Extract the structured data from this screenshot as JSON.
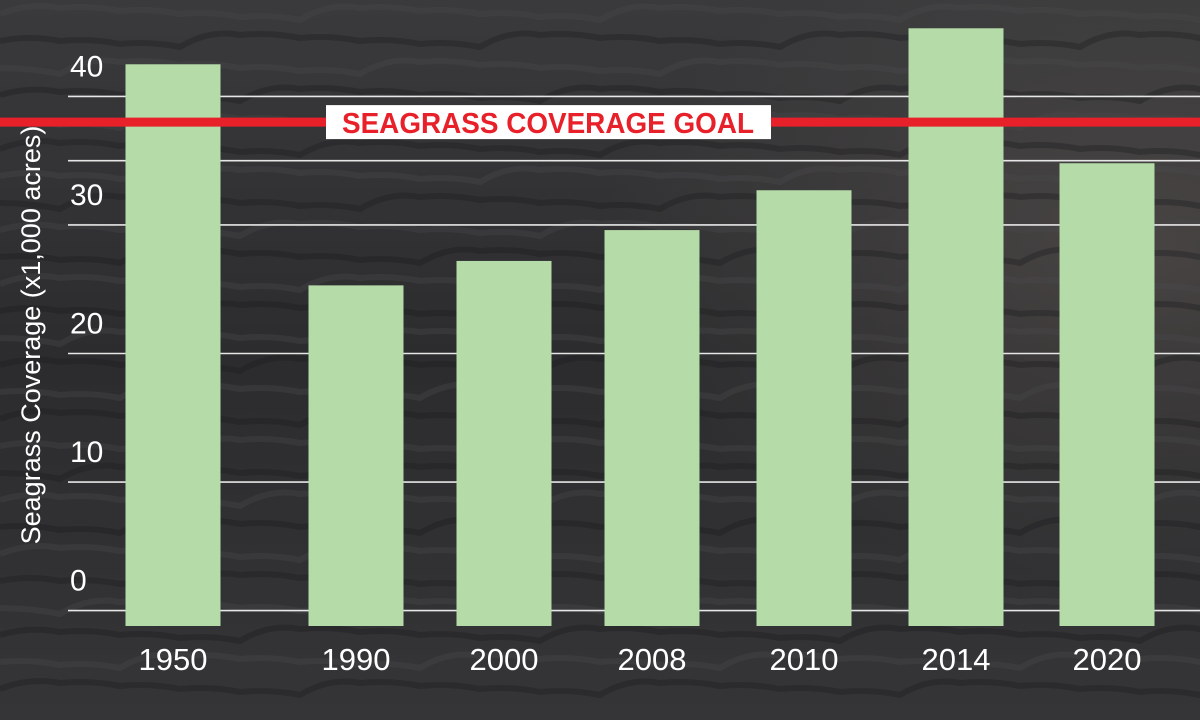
{
  "chart_data": {
    "type": "bar",
    "title": "",
    "xlabel": "",
    "ylabel": "Seagrass Coverage (x1,000 acres)",
    "categories": [
      "1950",
      "1990",
      "2000",
      "2008",
      "2010",
      "2014",
      "2020"
    ],
    "values": [
      42.5,
      25.3,
      27.2,
      29.6,
      32.7,
      45.3,
      34.8
    ],
    "yticks": [
      0,
      10,
      20,
      30,
      40
    ],
    "ylim": [
      -1.2,
      47.5
    ],
    "grid": true,
    "goal": {
      "label": "SEAGRASS COVERAGE GOAL",
      "value": 38.0
    },
    "colors": {
      "bar": "#b5dba9",
      "goal_line": "#e8202a",
      "goal_label_bg": "#ffffff",
      "gridline": "#e6e6e6",
      "text": "#ffffff"
    }
  }
}
